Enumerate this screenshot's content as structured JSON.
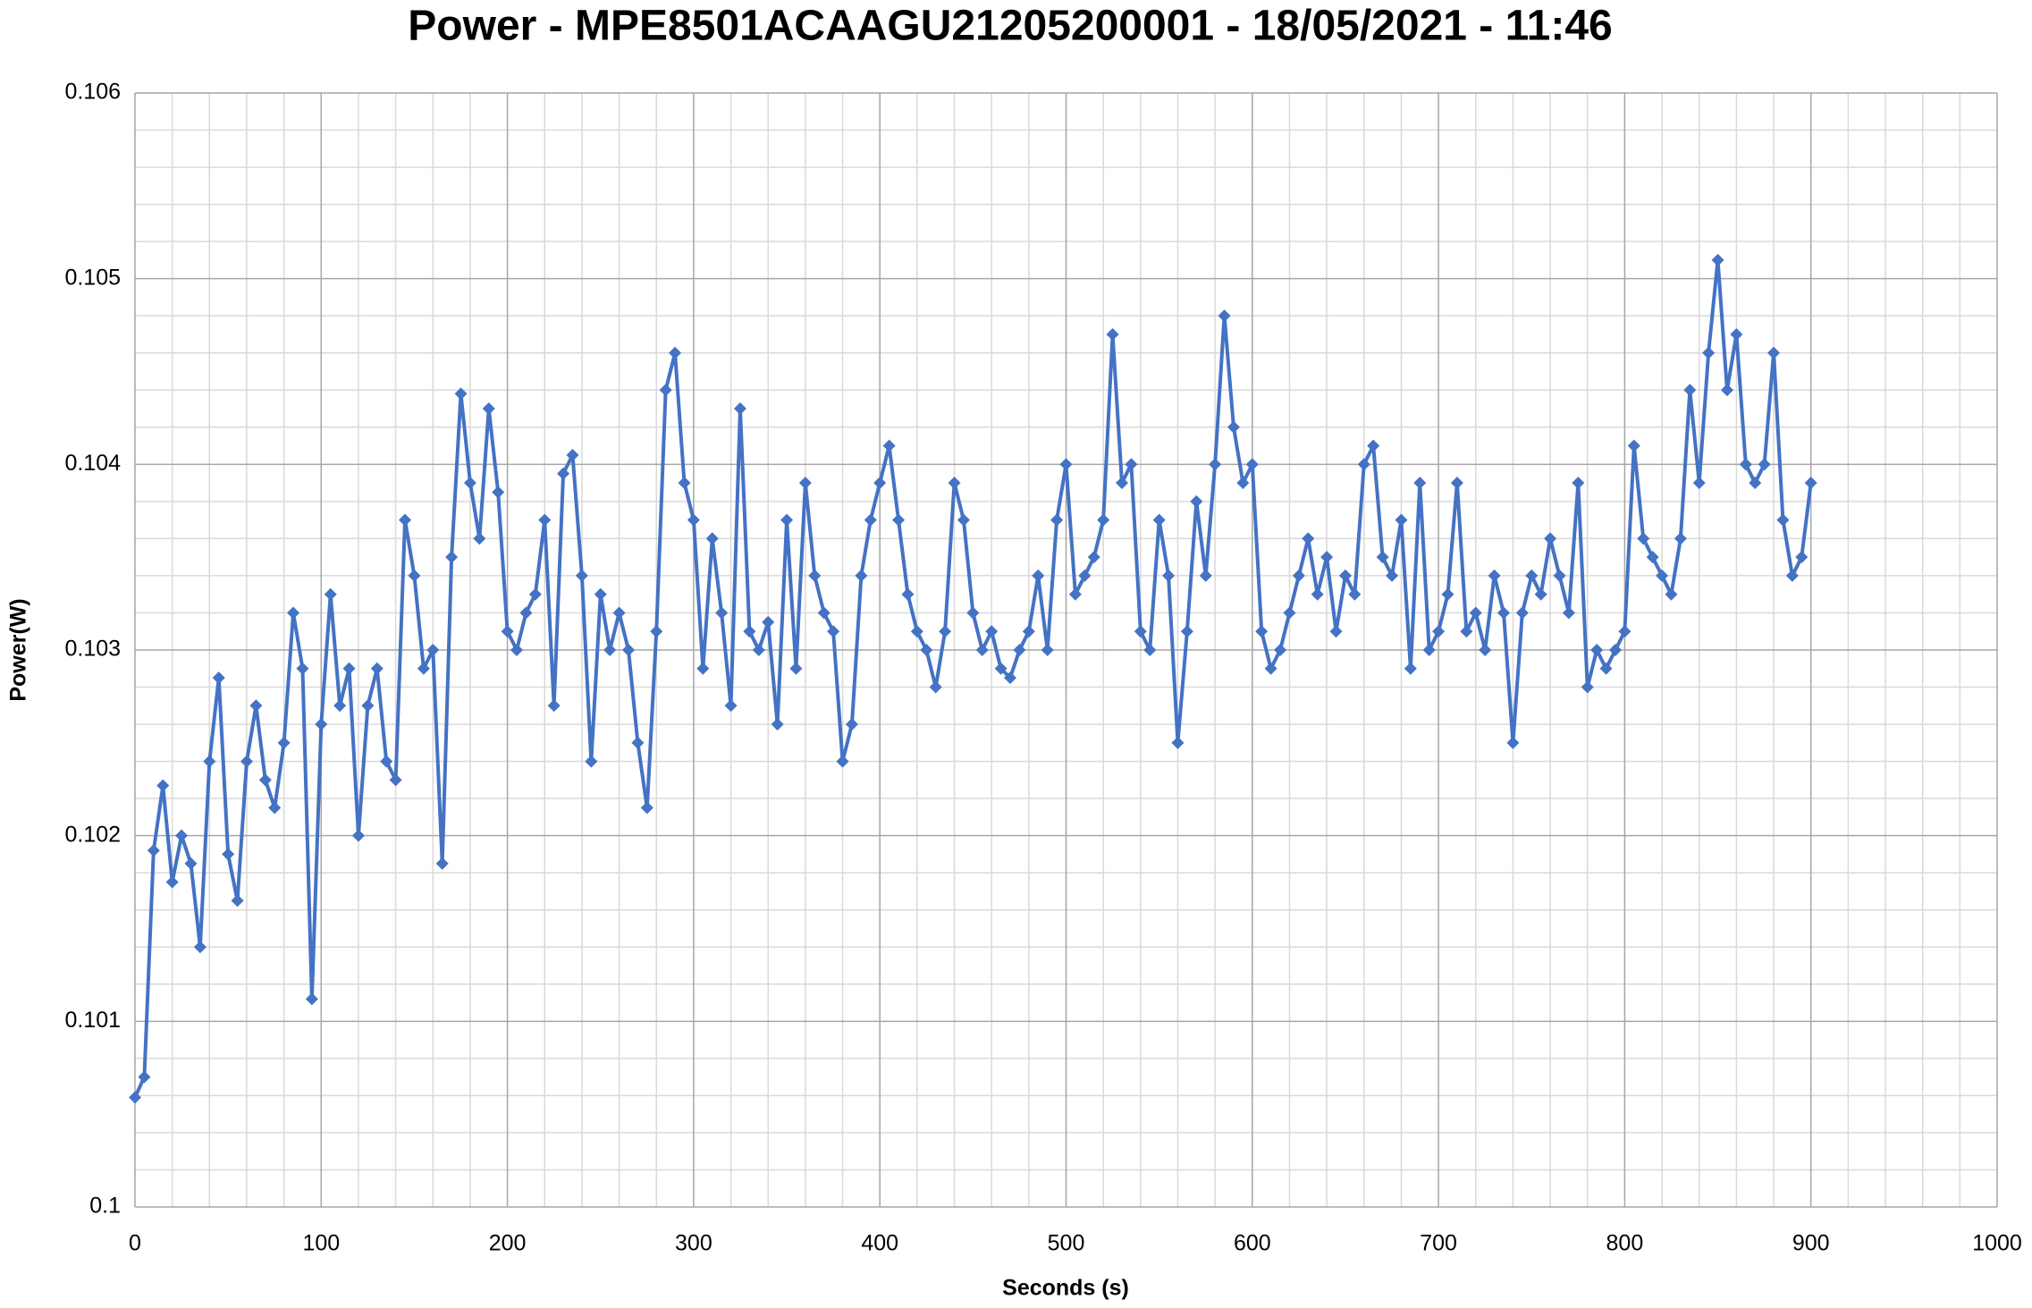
{
  "chart_data": {
    "type": "line",
    "title": "Power - MPE8501ACAAGU21205200001 - 18/05/2021 - 11:46",
    "x_label": "Seconds (s)",
    "y_label": "Power(W)",
    "color": "#4472c4",
    "marker": "diamond",
    "grid": true,
    "xlim": [
      0,
      1000
    ],
    "xticks": [
      0,
      100,
      200,
      300,
      400,
      500,
      600,
      700,
      800,
      900,
      1000
    ],
    "ylim": [
      0.1,
      0.106
    ],
    "yticks": [
      0.1,
      0.101,
      0.102,
      0.103,
      0.104,
      0.105,
      0.106
    ],
    "xminorticks": [
      20,
      40,
      60,
      80,
      120,
      140,
      160,
      180,
      220,
      240,
      260,
      280,
      320,
      340,
      360,
      380,
      420,
      440,
      460,
      480,
      520,
      540,
      560,
      580,
      620,
      640,
      660,
      680,
      720,
      740,
      760,
      780,
      820,
      840,
      860,
      880,
      920,
      940,
      960,
      980
    ],
    "yminorticks": [
      0.1002,
      0.1004,
      0.1006,
      0.1008,
      0.1012,
      0.1014,
      0.1016,
      0.1018,
      0.1022,
      0.1024,
      0.1026,
      0.1028,
      0.1032,
      0.1034,
      0.1036,
      0.1038,
      0.1042,
      0.1044,
      0.1046,
      0.1048,
      0.1052,
      0.1054,
      0.1056,
      0.1058
    ],
    "x": [
      0,
      5,
      10,
      15,
      20,
      25,
      30,
      35,
      40,
      45,
      50,
      55,
      60,
      65,
      70,
      75,
      80,
      85,
      90,
      95,
      100,
      105,
      110,
      115,
      120,
      125,
      130,
      135,
      140,
      145,
      150,
      155,
      160,
      165,
      170,
      175,
      180,
      185,
      190,
      195,
      200,
      205,
      210,
      215,
      220,
      225,
      230,
      235,
      240,
      245,
      250,
      255,
      260,
      265,
      270,
      275,
      280,
      285,
      290,
      295,
      300,
      305,
      310,
      315,
      320,
      325,
      330,
      335,
      340,
      345,
      350,
      355,
      360,
      365,
      370,
      375,
      380,
      385,
      390,
      395,
      400,
      405,
      410,
      415,
      420,
      425,
      430,
      435,
      440,
      445,
      450,
      455,
      460,
      465,
      470,
      475,
      480,
      485,
      490,
      495,
      500,
      505,
      510,
      515,
      520,
      525,
      530,
      535,
      540,
      545,
      550,
      555,
      560,
      565,
      570,
      575,
      580,
      585,
      590,
      595,
      600,
      605,
      610,
      615,
      620,
      625,
      630,
      635,
      640,
      645,
      650,
      655,
      660,
      665,
      670,
      675,
      680,
      685,
      690,
      695,
      700,
      705,
      710,
      715,
      720,
      725,
      730,
      735,
      740,
      745,
      750,
      755,
      760,
      765,
      770,
      775,
      780,
      785,
      790,
      795,
      800,
      805,
      810,
      815,
      820,
      825,
      830,
      835,
      840,
      845,
      850,
      855,
      860,
      865,
      870,
      875,
      880,
      885,
      890,
      895,
      900
    ],
    "values": [
      0.10059,
      0.1007,
      0.10192,
      0.10227,
      0.10175,
      0.102,
      0.10185,
      0.1014,
      0.1024,
      0.10285,
      0.1019,
      0.10165,
      0.1024,
      0.1027,
      0.1023,
      0.10215,
      0.1025,
      0.1032,
      0.1029,
      0.10112,
      0.1026,
      0.1033,
      0.1027,
      0.1029,
      0.102,
      0.1027,
      0.1029,
      0.1024,
      0.1023,
      0.1037,
      0.1034,
      0.1029,
      0.103,
      0.10185,
      0.1035,
      0.10438,
      0.1039,
      0.1036,
      0.1043,
      0.10385,
      0.1031,
      0.103,
      0.1032,
      0.1033,
      0.1037,
      0.1027,
      0.10395,
      0.10405,
      0.1034,
      0.1024,
      0.1033,
      0.103,
      0.1032,
      0.103,
      0.1025,
      0.10215,
      0.1031,
      0.1044,
      0.1046,
      0.1039,
      0.1037,
      0.1029,
      0.1036,
      0.1032,
      0.1027,
      0.1043,
      0.1031,
      0.103,
      0.10315,
      0.1026,
      0.1037,
      0.1029,
      0.1039,
      0.1034,
      0.1032,
      0.1031,
      0.1024,
      0.1026,
      0.1034,
      0.1037,
      0.1039,
      0.1041,
      0.1037,
      0.1033,
      0.1031,
      0.103,
      0.1028,
      0.1031,
      0.1039,
      0.1037,
      0.1032,
      0.103,
      0.1031,
      0.1029,
      0.10285,
      0.103,
      0.1031,
      0.1034,
      0.103,
      0.1037,
      0.104,
      0.1033,
      0.1034,
      0.1035,
      0.1037,
      0.1047,
      0.1039,
      0.104,
      0.1031,
      0.103,
      0.1037,
      0.1034,
      0.1025,
      0.1031,
      0.1038,
      0.1034,
      0.104,
      0.1048,
      0.1042,
      0.1039,
      0.104,
      0.1031,
      0.1029,
      0.103,
      0.1032,
      0.1034,
      0.1036,
      0.1033,
      0.1035,
      0.1031,
      0.1034,
      0.1033,
      0.104,
      0.1041,
      0.1035,
      0.1034,
      0.1037,
      0.1029,
      0.1039,
      0.103,
      0.1031,
      0.1033,
      0.1039,
      0.1031,
      0.1032,
      0.103,
      0.1034,
      0.1032,
      0.1025,
      0.1032,
      0.1034,
      0.1033,
      0.1036,
      0.1034,
      0.1032,
      0.1039,
      0.1028,
      0.103,
      0.1029,
      0.103,
      0.1031,
      0.1041,
      0.1036,
      0.1035,
      0.1034,
      0.1033,
      0.1036,
      0.1044,
      0.1039,
      0.1046,
      0.1051,
      0.1044,
      0.1047,
      0.104,
      0.1039,
      0.104,
      0.1046,
      0.1037,
      0.1034,
      0.1035,
      0.1039
    ]
  }
}
